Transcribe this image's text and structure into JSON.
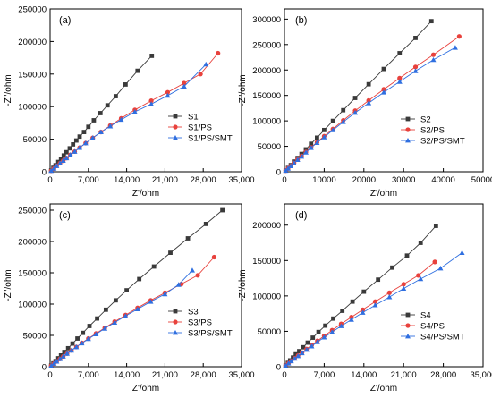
{
  "chart_data": [
    {
      "type": "scatter",
      "panel_label": "(a)",
      "xlabel": "Z'/ohm",
      "ylabel": "-Z''/ohm",
      "xlim": [
        0,
        35000
      ],
      "ylim": [
        0,
        250000
      ],
      "xticks": [
        "0",
        "7,000",
        "14,000",
        "21,000",
        "28,000",
        "35,000"
      ],
      "xtick_values": [
        0,
        7000,
        14000,
        21000,
        28000,
        35000
      ],
      "yticks": [
        "0",
        "50000",
        "100000",
        "150000",
        "200000",
        "250000"
      ],
      "ytick_values": [
        0,
        50000,
        100000,
        150000,
        200000,
        250000
      ],
      "legend_position": "center-right",
      "series": [
        {
          "name": "S1",
          "color": "#3a3a3a",
          "marker": "square",
          "x": [
            200,
            600,
            1000,
            1500,
            2000,
            2500,
            3000,
            3600,
            4200,
            4800,
            5400,
            6200,
            7000,
            8000,
            9200,
            10500,
            12000,
            13800,
            16000,
            18600
          ],
          "y": [
            2000,
            6000,
            10000,
            15000,
            20000,
            25000,
            30000,
            36000,
            42000,
            48000,
            54000,
            61000,
            69000,
            79000,
            90000,
            102000,
            116000,
            134000,
            155000,
            178000
          ]
        },
        {
          "name": "S1/PS",
          "color": "#e8413c",
          "marker": "circle",
          "x": [
            200,
            700,
            1200,
            1800,
            2400,
            3000,
            3700,
            4500,
            5400,
            6500,
            7800,
            9300,
            11000,
            13000,
            15500,
            18500,
            21500,
            24500,
            27500,
            30700
          ],
          "y": [
            1500,
            5000,
            9000,
            13000,
            17000,
            21000,
            26000,
            31000,
            37000,
            44000,
            52000,
            61000,
            71000,
            82000,
            95000,
            109000,
            122000,
            136000,
            150000,
            182000
          ]
        },
        {
          "name": "S1/PS/SMT",
          "color": "#2f6fe0",
          "marker": "triangle",
          "x": [
            200,
            700,
            1200,
            1800,
            2400,
            3000,
            3700,
            4500,
            5400,
            6500,
            7800,
            9300,
            11000,
            13000,
            15500,
            18500,
            21500,
            24500,
            28500
          ],
          "y": [
            1500,
            5000,
            9000,
            13000,
            17000,
            21000,
            26000,
            31000,
            37000,
            44000,
            52000,
            61000,
            70000,
            80000,
            92000,
            104000,
            117000,
            131000,
            165000
          ]
        }
      ]
    },
    {
      "type": "scatter",
      "panel_label": "(b)",
      "xlabel": "Z'/ohm",
      "ylabel": "-Z''/ohm",
      "xlim": [
        0,
        50000
      ],
      "ylim": [
        0,
        320000
      ],
      "xticks": [
        "0",
        "10000",
        "20000",
        "30000",
        "40000",
        "50000"
      ],
      "xtick_values": [
        0,
        10000,
        20000,
        30000,
        40000,
        50000
      ],
      "yticks": [
        "0",
        "50000",
        "100000",
        "150000",
        "200000",
        "250000",
        "300000"
      ],
      "ytick_values": [
        0,
        50000,
        100000,
        150000,
        200000,
        250000,
        300000
      ],
      "legend_position": "center-right",
      "series": [
        {
          "name": "S2",
          "color": "#3a3a3a",
          "marker": "square",
          "x": [
            300,
            900,
            1600,
            2400,
            3300,
            4300,
            5400,
            6700,
            8200,
            10000,
            12200,
            14800,
            17800,
            21200,
            25000,
            29000,
            33000,
            37000
          ],
          "y": [
            2500,
            7500,
            13000,
            20000,
            27000,
            35000,
            44000,
            55000,
            67000,
            82000,
            100000,
            121000,
            145000,
            172000,
            202000,
            233000,
            263000,
            296000
          ]
        },
        {
          "name": "S2/PS",
          "color": "#e8413c",
          "marker": "circle",
          "x": [
            300,
            900,
            1600,
            2400,
            3300,
            4300,
            5400,
            6700,
            8200,
            10000,
            12200,
            14800,
            17800,
            21200,
            25000,
            29000,
            33000,
            37500,
            44000
          ],
          "y": [
            2200,
            6600,
            11500,
            17500,
            24000,
            31000,
            39000,
            48000,
            58000,
            70000,
            84000,
            101000,
            120000,
            140000,
            162000,
            184000,
            206000,
            230000,
            266000
          ]
        },
        {
          "name": "S2/PS/SMT",
          "color": "#2f6fe0",
          "marker": "triangle",
          "x": [
            300,
            900,
            1600,
            2400,
            3300,
            4300,
            5400,
            6700,
            8200,
            10000,
            12200,
            14800,
            17800,
            21200,
            25000,
            29000,
            33000,
            37500,
            43000
          ],
          "y": [
            2200,
            6500,
            11300,
            17000,
            23500,
            30000,
            38000,
            47000,
            57000,
            68000,
            82000,
            98000,
            116000,
            135000,
            156000,
            177000,
            198000,
            220000,
            244000
          ]
        }
      ]
    },
    {
      "type": "scatter",
      "panel_label": "(c)",
      "xlabel": "Z'/ohm",
      "ylabel": "-Z''/ohm",
      "xlim": [
        0,
        35000
      ],
      "ylim": [
        0,
        260000
      ],
      "xticks": [
        "0",
        "7,000",
        "14,000",
        "21,000",
        "28,000",
        "35,000"
      ],
      "xtick_values": [
        0,
        7000,
        14000,
        21000,
        28000,
        35000
      ],
      "yticks": [
        "0",
        "50000",
        "100000",
        "150000",
        "200000",
        "250000"
      ],
      "ytick_values": [
        0,
        50000,
        100000,
        150000,
        200000,
        250000
      ],
      "legend_position": "center-right",
      "series": [
        {
          "name": "S3",
          "color": "#3a3a3a",
          "marker": "square",
          "x": [
            200,
            600,
            1000,
            1500,
            2000,
            2600,
            3300,
            4100,
            5000,
            6000,
            7200,
            8600,
            10200,
            12000,
            14000,
            16300,
            19000,
            22000,
            25200,
            28500,
            31500
          ],
          "y": [
            1800,
            5400,
            9000,
            13500,
            18000,
            23500,
            29500,
            37000,
            45000,
            54000,
            65000,
            77000,
            91000,
            106000,
            122000,
            140000,
            160000,
            182000,
            205000,
            228000,
            250000
          ]
        },
        {
          "name": "S3/PS",
          "color": "#e8413c",
          "marker": "circle",
          "x": [
            200,
            700,
            1200,
            1800,
            2400,
            3100,
            3900,
            4800,
            5800,
            7000,
            8400,
            10000,
            11800,
            13800,
            16000,
            18400,
            21000,
            24000,
            27000,
            30000
          ],
          "y": [
            1500,
            5000,
            8500,
            12500,
            16500,
            21000,
            26000,
            31500,
            38000,
            45000,
            53000,
            62000,
            72000,
            82500,
            94000,
            106000,
            118000,
            132000,
            146000,
            175000
          ]
        },
        {
          "name": "S3/PS/SMT",
          "color": "#2f6fe0",
          "marker": "triangle",
          "x": [
            200,
            700,
            1200,
            1800,
            2400,
            3100,
            3900,
            4800,
            5800,
            7000,
            8400,
            10000,
            11800,
            13800,
            16000,
            18400,
            21000,
            23500,
            26000
          ],
          "y": [
            1500,
            5000,
            8500,
            12500,
            16500,
            21000,
            26000,
            31500,
            37500,
            44500,
            52000,
            61000,
            70500,
            81000,
            92000,
            104000,
            116000,
            131000,
            154000
          ]
        }
      ]
    },
    {
      "type": "scatter",
      "panel_label": "(d)",
      "xlabel": "Z'/ohm",
      "ylabel": "-Z''/ohm",
      "xlim": [
        0,
        35000
      ],
      "ylim": [
        0,
        230000
      ],
      "xticks": [
        "0",
        "7,000",
        "14,000",
        "21,000",
        "28,000",
        "35,000"
      ],
      "xtick_values": [
        0,
        7000,
        14000,
        21000,
        28000,
        35000
      ],
      "yticks": [
        "0",
        "50000",
        "100000",
        "150000",
        "200000"
      ],
      "ytick_values": [
        0,
        50000,
        100000,
        150000,
        200000
      ],
      "legend_position": "center-right",
      "series": [
        {
          "name": "S4",
          "color": "#3a3a3a",
          "marker": "square",
          "x": [
            200,
            600,
            1000,
            1500,
            2000,
            2600,
            3300,
            4100,
            5000,
            6000,
            7200,
            8600,
            10200,
            12000,
            14000,
            16500,
            19000,
            21600,
            24000,
            26700
          ],
          "y": [
            1800,
            5400,
            9000,
            13000,
            17500,
            22000,
            27500,
            34000,
            41000,
            49000,
            58000,
            68000,
            79000,
            92000,
            106000,
            123000,
            140000,
            157000,
            175000,
            199000
          ]
        },
        {
          "name": "S4/PS",
          "color": "#e8413c",
          "marker": "circle",
          "x": [
            200,
            700,
            1200,
            1800,
            2400,
            3100,
            3900,
            4800,
            5800,
            7000,
            8400,
            10000,
            11800,
            13800,
            16000,
            18500,
            21000,
            23600,
            26500
          ],
          "y": [
            1400,
            4800,
            8200,
            12000,
            15800,
            20000,
            25000,
            30500,
            36500,
            43500,
            51500,
            60500,
            70000,
            80500,
            92000,
            104500,
            116500,
            129000,
            148000
          ]
        },
        {
          "name": "S4/PS/SMT",
          "color": "#2f6fe0",
          "marker": "triangle",
          "x": [
            200,
            700,
            1200,
            1800,
            2400,
            3100,
            3900,
            4800,
            5800,
            7000,
            8400,
            10000,
            11800,
            13800,
            16000,
            18500,
            21000,
            24000,
            27500,
            31300
          ],
          "y": [
            1400,
            4700,
            8000,
            11500,
            15200,
            19300,
            24000,
            29000,
            35000,
            41500,
            49000,
            57500,
            66500,
            76500,
            87000,
            98500,
            110500,
            124000,
            139000,
            161000
          ]
        }
      ]
    }
  ]
}
